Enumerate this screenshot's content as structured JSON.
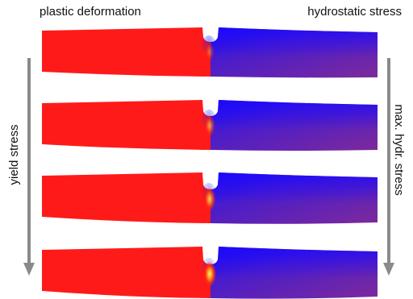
{
  "labels": {
    "top_left": "plastic deformation",
    "top_right": "hydrostatic stress",
    "left_axis": "yield stress",
    "right_axis": "max. hydr. stress"
  },
  "colors": {
    "plastic": "#ff1a1a",
    "hydro_high": "#2a12e6",
    "hydro_low": "#7a2a9c",
    "hot_spot": "#ffe066",
    "arrow": "#8a8a8a"
  },
  "panels": [
    {
      "name": "panel-1",
      "notch_depth": 0.45,
      "hot_intensity": 0.35
    },
    {
      "name": "panel-2",
      "notch_depth": 0.55,
      "hot_intensity": 0.6
    },
    {
      "name": "panel-3",
      "notch_depth": 0.6,
      "hot_intensity": 0.8
    },
    {
      "name": "panel-4",
      "notch_depth": 0.65,
      "hot_intensity": 1.0
    }
  ]
}
